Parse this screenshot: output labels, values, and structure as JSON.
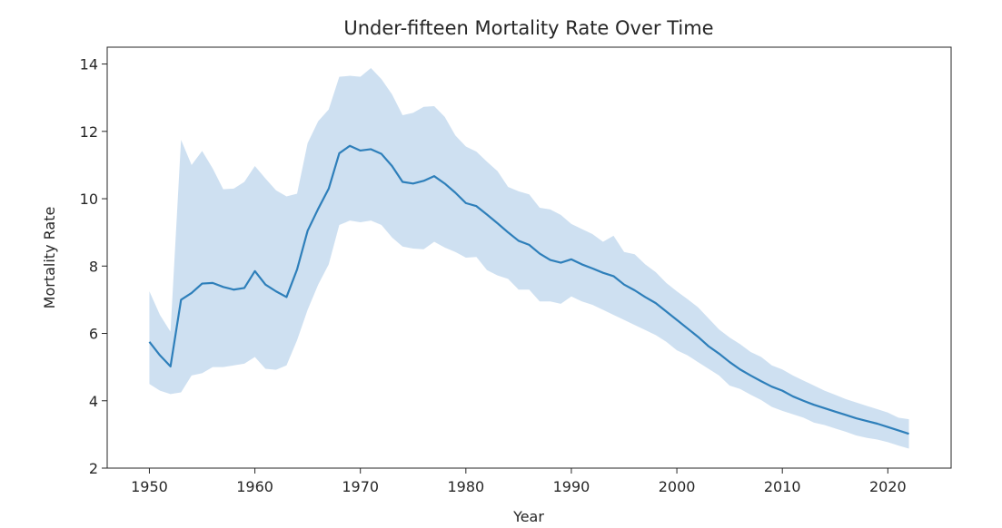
{
  "chart_data": {
    "type": "line",
    "title": "Under-fifteen Mortality Rate Over Time",
    "xlabel": "Year",
    "ylabel": "Mortality Rate",
    "xlim": [
      1946,
      2026
    ],
    "ylim": [
      2,
      14.5
    ],
    "x_ticks": [
      1950,
      1960,
      1970,
      1980,
      1990,
      2000,
      2010,
      2020
    ],
    "y_ticks": [
      2,
      4,
      6,
      8,
      10,
      12,
      14
    ],
    "grid": false,
    "legend": "none",
    "colors": {
      "line": "#2e7fba",
      "band": "#c6dbee"
    },
    "series": [
      {
        "x": [
          1950,
          1951,
          1952,
          1953,
          1954,
          1955,
          1956,
          1957,
          1958,
          1959,
          1960,
          1961,
          1962,
          1963,
          1964,
          1965,
          1966,
          1967,
          1968,
          1969,
          1970,
          1971,
          1972,
          1973,
          1974,
          1975,
          1976,
          1977,
          1978,
          1979,
          1980,
          1981,
          1982,
          1983,
          1984,
          1985,
          1986,
          1987,
          1988,
          1989,
          1990,
          1991,
          1992,
          1993,
          1994,
          1995,
          1996,
          1997,
          1998,
          1999,
          2000,
          2001,
          2002,
          2003,
          2004,
          2005,
          2006,
          2007,
          2008,
          2009,
          2010,
          2011,
          2012,
          2013,
          2014,
          2015,
          2016,
          2017,
          2018,
          2019,
          2020,
          2021,
          2022
        ],
        "y": [
          5.75,
          5.35,
          5.02,
          7.0,
          7.2,
          7.48,
          7.5,
          7.38,
          7.3,
          7.35,
          7.85,
          7.45,
          7.25,
          7.08,
          7.9,
          9.05,
          9.7,
          10.3,
          11.35,
          11.57,
          11.43,
          11.47,
          11.33,
          10.97,
          10.5,
          10.45,
          10.53,
          10.67,
          10.45,
          10.18,
          9.87,
          9.78,
          9.53,
          9.27,
          9.0,
          8.75,
          8.63,
          8.37,
          8.18,
          8.1,
          8.2,
          8.05,
          7.93,
          7.8,
          7.7,
          7.45,
          7.28,
          7.08,
          6.9,
          6.65,
          6.4,
          6.15,
          5.9,
          5.62,
          5.4,
          5.15,
          4.93,
          4.75,
          4.58,
          4.42,
          4.3,
          4.13,
          4.0,
          3.88,
          3.78,
          3.68,
          3.58,
          3.48,
          3.4,
          3.32,
          3.22,
          3.12,
          3.02
        ],
        "lower": [
          4.5,
          4.3,
          4.2,
          4.25,
          4.75,
          4.82,
          5.0,
          5.0,
          5.05,
          5.1,
          5.3,
          4.95,
          4.92,
          5.05,
          5.8,
          6.7,
          7.45,
          8.05,
          9.22,
          9.35,
          9.3,
          9.35,
          9.22,
          8.85,
          8.58,
          8.52,
          8.5,
          8.72,
          8.55,
          8.42,
          8.25,
          8.27,
          7.88,
          7.72,
          7.62,
          7.3,
          7.3,
          6.95,
          6.95,
          6.88,
          7.1,
          6.95,
          6.85,
          6.7,
          6.55,
          6.4,
          6.25,
          6.1,
          5.95,
          5.75,
          5.5,
          5.35,
          5.15,
          4.95,
          4.75,
          4.45,
          4.35,
          4.18,
          4.02,
          3.82,
          3.7,
          3.6,
          3.5,
          3.35,
          3.28,
          3.18,
          3.08,
          2.97,
          2.9,
          2.85,
          2.77,
          2.67,
          2.58
        ],
        "upper": [
          7.25,
          6.55,
          6.05,
          11.75,
          11.0,
          11.42,
          10.9,
          10.28,
          10.3,
          10.5,
          10.97,
          10.6,
          10.25,
          10.07,
          10.15,
          11.65,
          12.3,
          12.65,
          13.62,
          13.65,
          13.62,
          13.88,
          13.55,
          13.1,
          12.48,
          12.55,
          12.73,
          12.75,
          12.43,
          11.88,
          11.55,
          11.4,
          11.1,
          10.82,
          10.35,
          10.22,
          10.13,
          9.73,
          9.68,
          9.52,
          9.25,
          9.1,
          8.95,
          8.72,
          8.9,
          8.42,
          8.35,
          8.05,
          7.82,
          7.5,
          7.25,
          7.02,
          6.78,
          6.45,
          6.12,
          5.88,
          5.68,
          5.45,
          5.3,
          5.05,
          4.93,
          4.75,
          4.6,
          4.45,
          4.3,
          4.18,
          4.05,
          3.95,
          3.85,
          3.75,
          3.65,
          3.5,
          3.45
        ]
      }
    ]
  }
}
